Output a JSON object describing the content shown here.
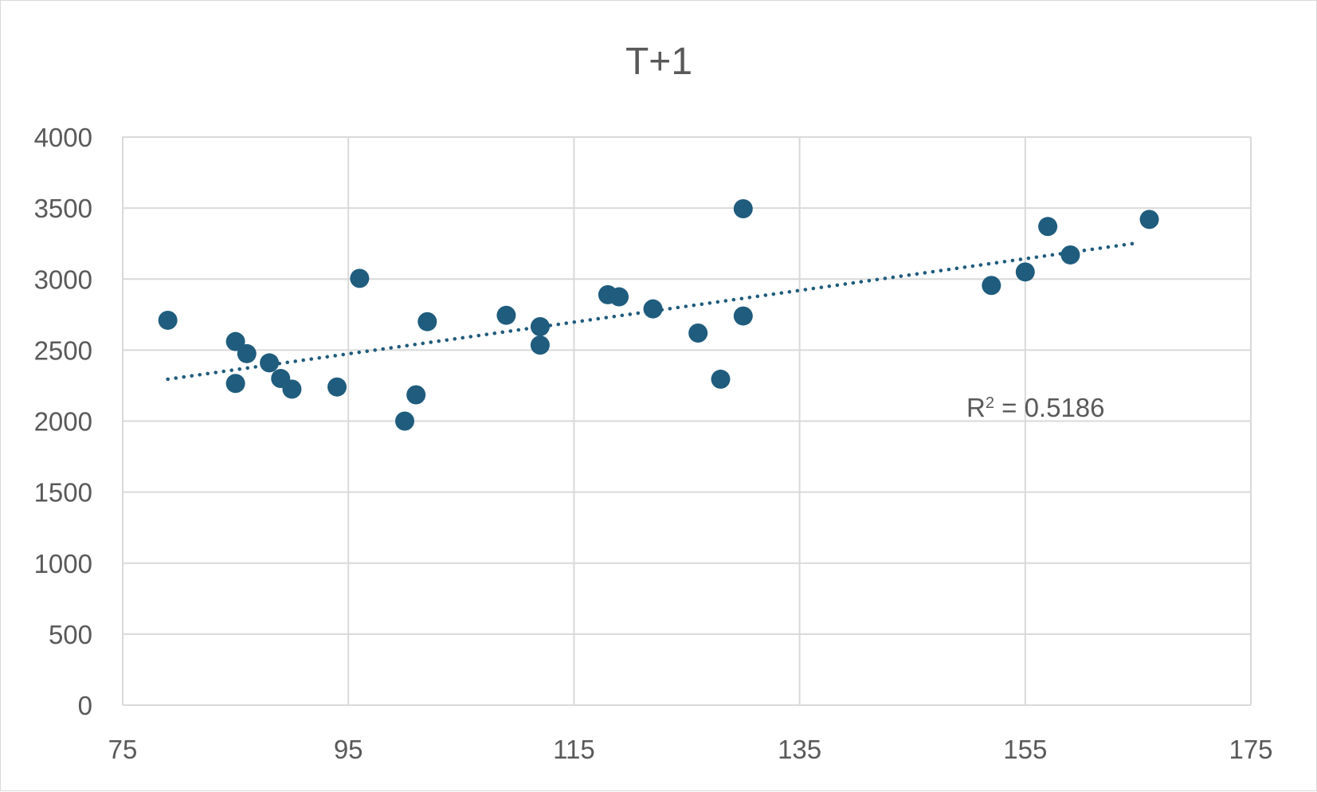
{
  "chart_data": {
    "type": "scatter",
    "title": "T+1",
    "xlabel": "",
    "ylabel": "",
    "xlim": [
      75,
      175
    ],
    "ylim": [
      0,
      4000
    ],
    "x_ticks": [
      "75",
      "95",
      "115",
      "135",
      "155",
      "175"
    ],
    "y_ticks": [
      "0",
      "500",
      "1000",
      "1500",
      "2000",
      "2500",
      "3000",
      "3500",
      "4000"
    ],
    "grid": true,
    "legend": "none",
    "marker_color": "#1f5c7d",
    "series": [
      {
        "points": [
          [
            79,
            2710
          ],
          [
            85,
            2560
          ],
          [
            85,
            2265
          ],
          [
            86,
            2475
          ],
          [
            88,
            2410
          ],
          [
            89,
            2300
          ],
          [
            90,
            2225
          ],
          [
            94,
            2240
          ],
          [
            96,
            3005
          ],
          [
            100,
            2000
          ],
          [
            101,
            2185
          ],
          [
            102,
            2700
          ],
          [
            109,
            2745
          ],
          [
            112,
            2665
          ],
          [
            112,
            2535
          ],
          [
            118,
            2890
          ],
          [
            119,
            2875
          ],
          [
            122,
            2790
          ],
          [
            126,
            2620
          ],
          [
            128,
            2295
          ],
          [
            130,
            3495
          ],
          [
            130,
            2740
          ],
          [
            152,
            2955
          ],
          [
            155,
            3050
          ],
          [
            157,
            3370
          ],
          [
            159,
            3170
          ],
          [
            166,
            3420
          ]
        ]
      }
    ],
    "trendline": {
      "type": "linear",
      "style": "dotted",
      "x_range": [
        79,
        165
      ],
      "y_start": 2295,
      "y_end": 3255,
      "r_squared_label": "R² = 0.5186"
    }
  }
}
